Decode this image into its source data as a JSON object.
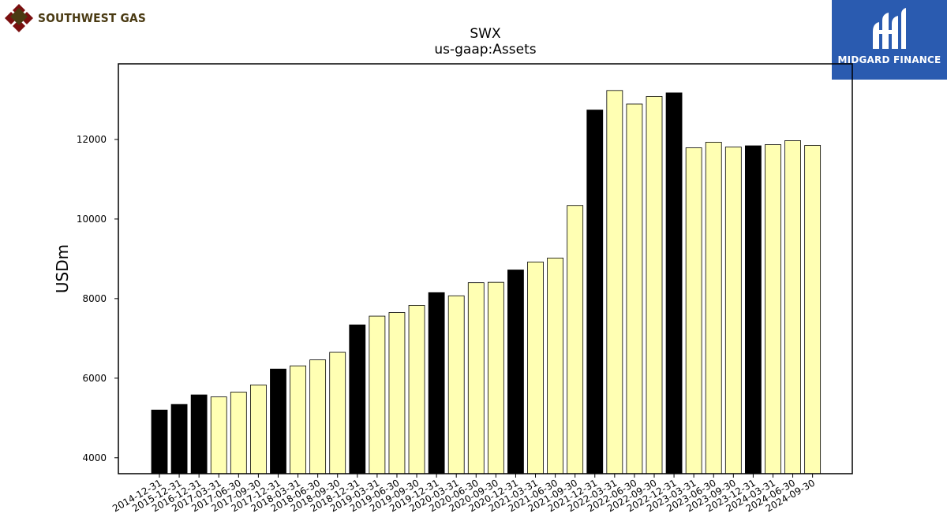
{
  "branding": {
    "company_name": "SOUTHWEST GAS",
    "publisher_name": "MIDGARD FINANCE",
    "colors": {
      "company_text": "#4a3a12",
      "company_mark": "#7a1010",
      "publisher_bg": "#2a5bb0"
    }
  },
  "chart_data": {
    "type": "bar",
    "title": "SWX",
    "subtitle": "us-gaap:Assets",
    "xlabel": "",
    "ylabel": "USDm",
    "ylim": [
      3600,
      13900
    ],
    "yticks": [
      4000,
      6000,
      8000,
      10000,
      12000
    ],
    "grid": false,
    "colors": {
      "annual": "#000000",
      "quarterly": "#ffffb3",
      "edge": "#000000"
    },
    "categories": [
      "2014-12-31",
      "2015-12-31",
      "2016-12-31",
      "2017-03-31",
      "2017-06-30",
      "2017-09-30",
      "2017-12-31",
      "2018-03-31",
      "2018-06-30",
      "2018-09-30",
      "2018-12-31",
      "2019-03-31",
      "2019-06-30",
      "2019-09-30",
      "2019-12-31",
      "2020-03-31",
      "2020-06-30",
      "2020-09-30",
      "2020-12-31",
      "2021-03-31",
      "2021-06-30",
      "2021-09-30",
      "2021-12-31",
      "2022-03-31",
      "2022-06-30",
      "2022-09-30",
      "2022-12-31",
      "2023-03-31",
      "2023-06-30",
      "2023-09-30",
      "2023-12-31",
      "2024-03-31",
      "2024-06-30",
      "2024-09-30"
    ],
    "values": [
      5200,
      5340,
      5580,
      5530,
      5650,
      5830,
      6230,
      6310,
      6460,
      6650,
      7340,
      7560,
      7650,
      7830,
      8150,
      8070,
      8400,
      8410,
      8720,
      8920,
      9020,
      10340,
      12740,
      13230,
      12890,
      13080,
      13170,
      11790,
      11930,
      11810,
      11840,
      11870,
      11970,
      11850
    ],
    "period_type": [
      "annual",
      "annual",
      "annual",
      "quarterly",
      "quarterly",
      "quarterly",
      "annual",
      "quarterly",
      "quarterly",
      "quarterly",
      "annual",
      "quarterly",
      "quarterly",
      "quarterly",
      "annual",
      "quarterly",
      "quarterly",
      "quarterly",
      "annual",
      "quarterly",
      "quarterly",
      "quarterly",
      "annual",
      "quarterly",
      "quarterly",
      "quarterly",
      "annual",
      "quarterly",
      "quarterly",
      "quarterly",
      "annual",
      "quarterly",
      "quarterly",
      "quarterly"
    ]
  }
}
